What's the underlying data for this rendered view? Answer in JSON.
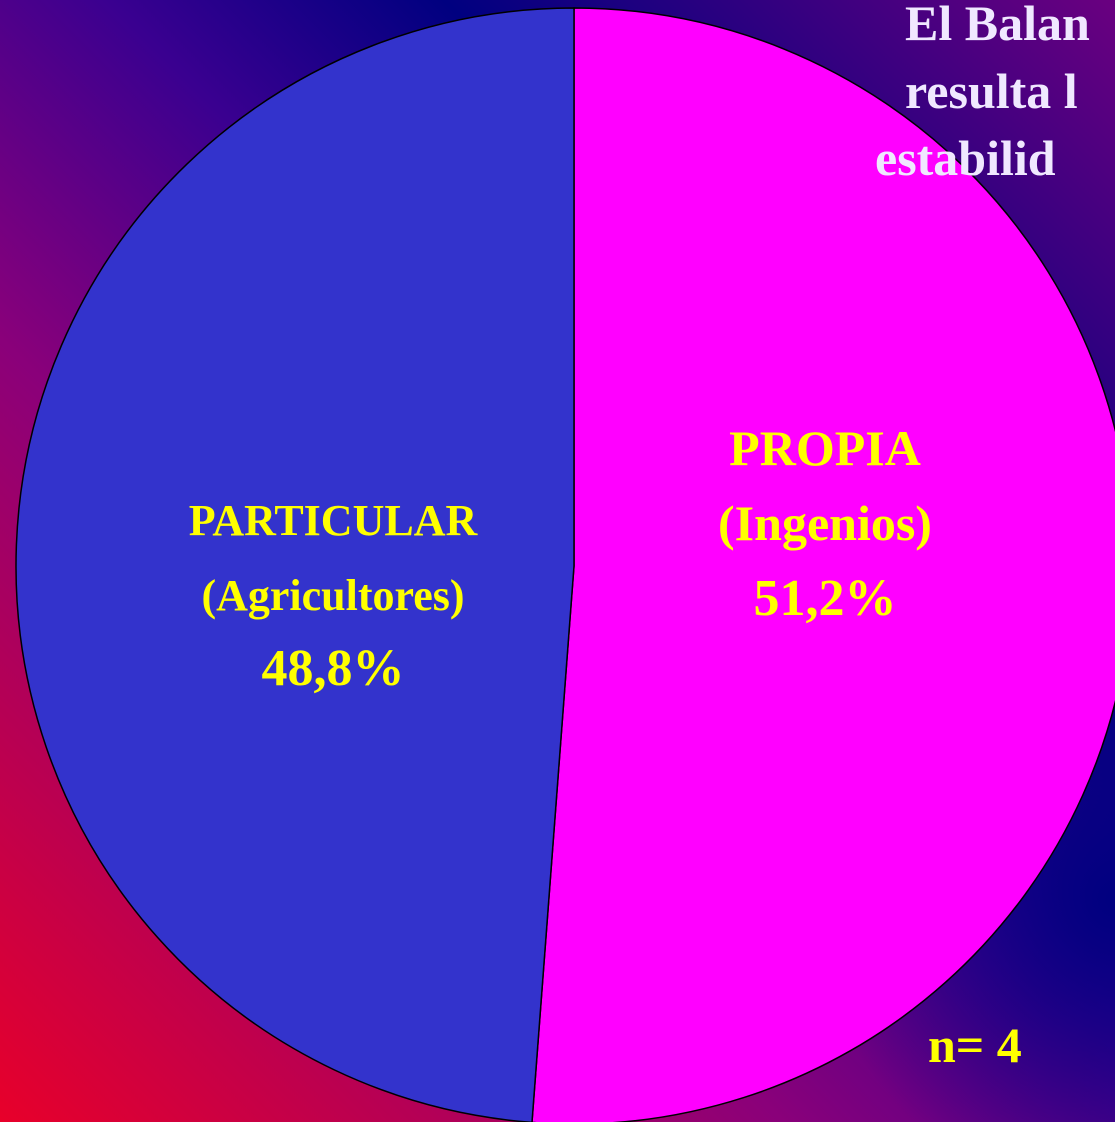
{
  "chart_data": {
    "type": "pie",
    "categories": [
      [
        "PROPIA",
        "(Ingenios)"
      ],
      [
        "PARTICULAR",
        "(Agricultores)"
      ]
    ],
    "values": [
      51.2,
      48.8
    ],
    "value_labels": [
      "51,2%",
      "48,8%"
    ],
    "colors": [
      "#ff00ff",
      "#3333cc"
    ],
    "annotations": [
      "El Balan",
      "resulta l",
      "estabilid",
      "n= 4"
    ]
  }
}
